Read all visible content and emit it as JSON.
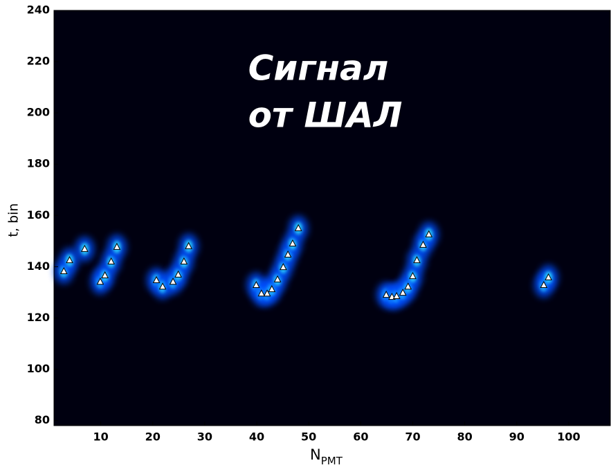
{
  "chart_data": {
    "type": "scatter",
    "annotation": [
      "Сигнал",
      "от ШАЛ"
    ],
    "xlabel": {
      "text": "N",
      "subscript": "PMT"
    },
    "ylabel": "t, bin",
    "x": [
      2.9,
      4,
      6.9,
      9.9,
      10.8,
      12,
      13.1,
      20.7,
      21.9,
      23.9,
      24.9,
      26,
      26.9,
      39.9,
      40.9,
      42,
      42.9,
      44,
      45.1,
      46,
      46.9,
      48,
      64.9,
      66,
      66.9,
      68.1,
      69.1,
      70,
      70.8,
      72,
      73.1,
      95.2,
      96.1
    ],
    "y": [
      138.2,
      142.5,
      146.9,
      134.1,
      136.6,
      142,
      147.7,
      134.7,
      132.2,
      134.1,
      136.9,
      142,
      148,
      132.8,
      129.5,
      129.5,
      131.2,
      135,
      139.8,
      144.7,
      149,
      155,
      129,
      128.2,
      128.5,
      129.8,
      132.2,
      136.3,
      142.5,
      148.5,
      152.6,
      132.8,
      135.8
    ],
    "marker_color": "#ffffff",
    "background_color": "#000010",
    "xlim": [
      1,
      108
    ],
    "ylim": [
      78,
      240
    ],
    "xticks": [
      10,
      20,
      30,
      40,
      50,
      60,
      70,
      80,
      90,
      100
    ],
    "yticks": [
      80,
      100,
      120,
      140,
      160,
      180,
      200,
      220,
      240
    ]
  }
}
